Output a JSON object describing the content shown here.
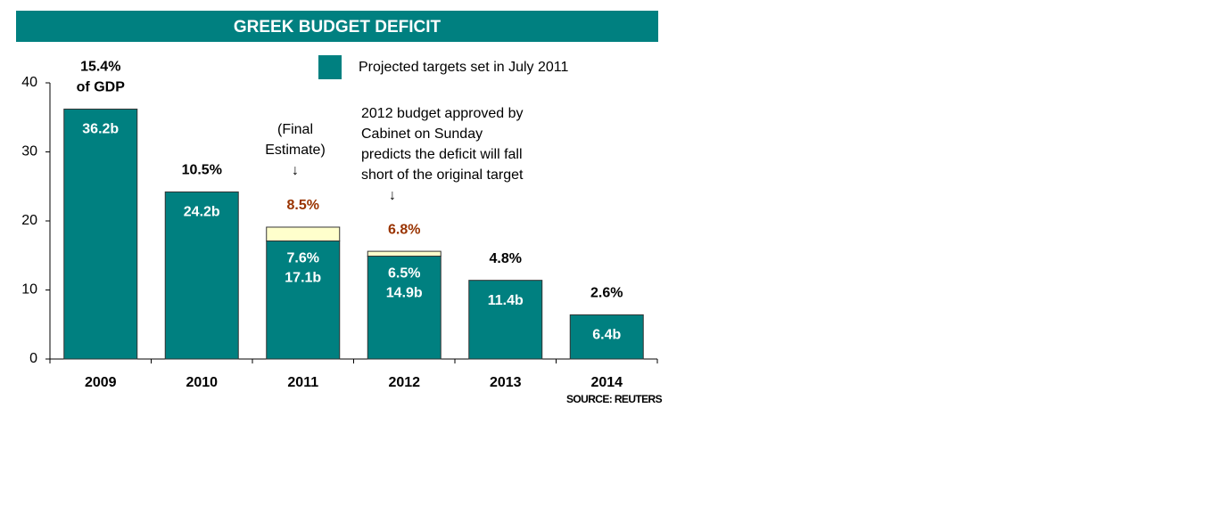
{
  "chart_data": {
    "type": "bar",
    "stacked": true,
    "title": "GREEK BUDGET DEFICIT",
    "categories": [
      "2009",
      "2010",
      "2011",
      "2012",
      "2013",
      "2014"
    ],
    "series": [
      {
        "name": "Projected targets set in July 2011",
        "color": "#008080",
        "values": [
          36.2,
          24.2,
          17.1,
          14.9,
          11.4,
          6.4
        ],
        "value_labels": [
          "36.2b",
          "24.2b",
          "17.1b",
          "14.9b",
          "11.4b",
          "6.4b"
        ]
      },
      {
        "color": "#ffffcc",
        "values": [
          null,
          null,
          2.0,
          0.7,
          null,
          null
        ]
      }
    ],
    "gdp_labels": [
      "15.4%",
      "10.5%",
      "8.5%",
      "6.8%",
      "4.8%",
      "2.6%"
    ],
    "gdp_label_colors": [
      "#000000",
      "#000000",
      "#993300",
      "#993300",
      "#000000",
      "#000000"
    ],
    "gdp_label_note": "of GDP",
    "projected_gdp_labels": [
      null,
      null,
      "7.6%",
      "6.5%",
      null,
      null
    ],
    "annotations": [
      {
        "lines": [
          "(Final",
          "Estimate)",
          "↓"
        ]
      },
      {
        "lines": [
          "2012 budget approved by",
          "Cabinet on Sunday",
          "predicts the deficit will fall",
          "short of the original target",
          "↓"
        ]
      }
    ],
    "source": "SOURCE: REUTERS",
    "ylim": [
      0,
      40
    ],
    "yticks": [
      0,
      10,
      20,
      30,
      40
    ]
  }
}
